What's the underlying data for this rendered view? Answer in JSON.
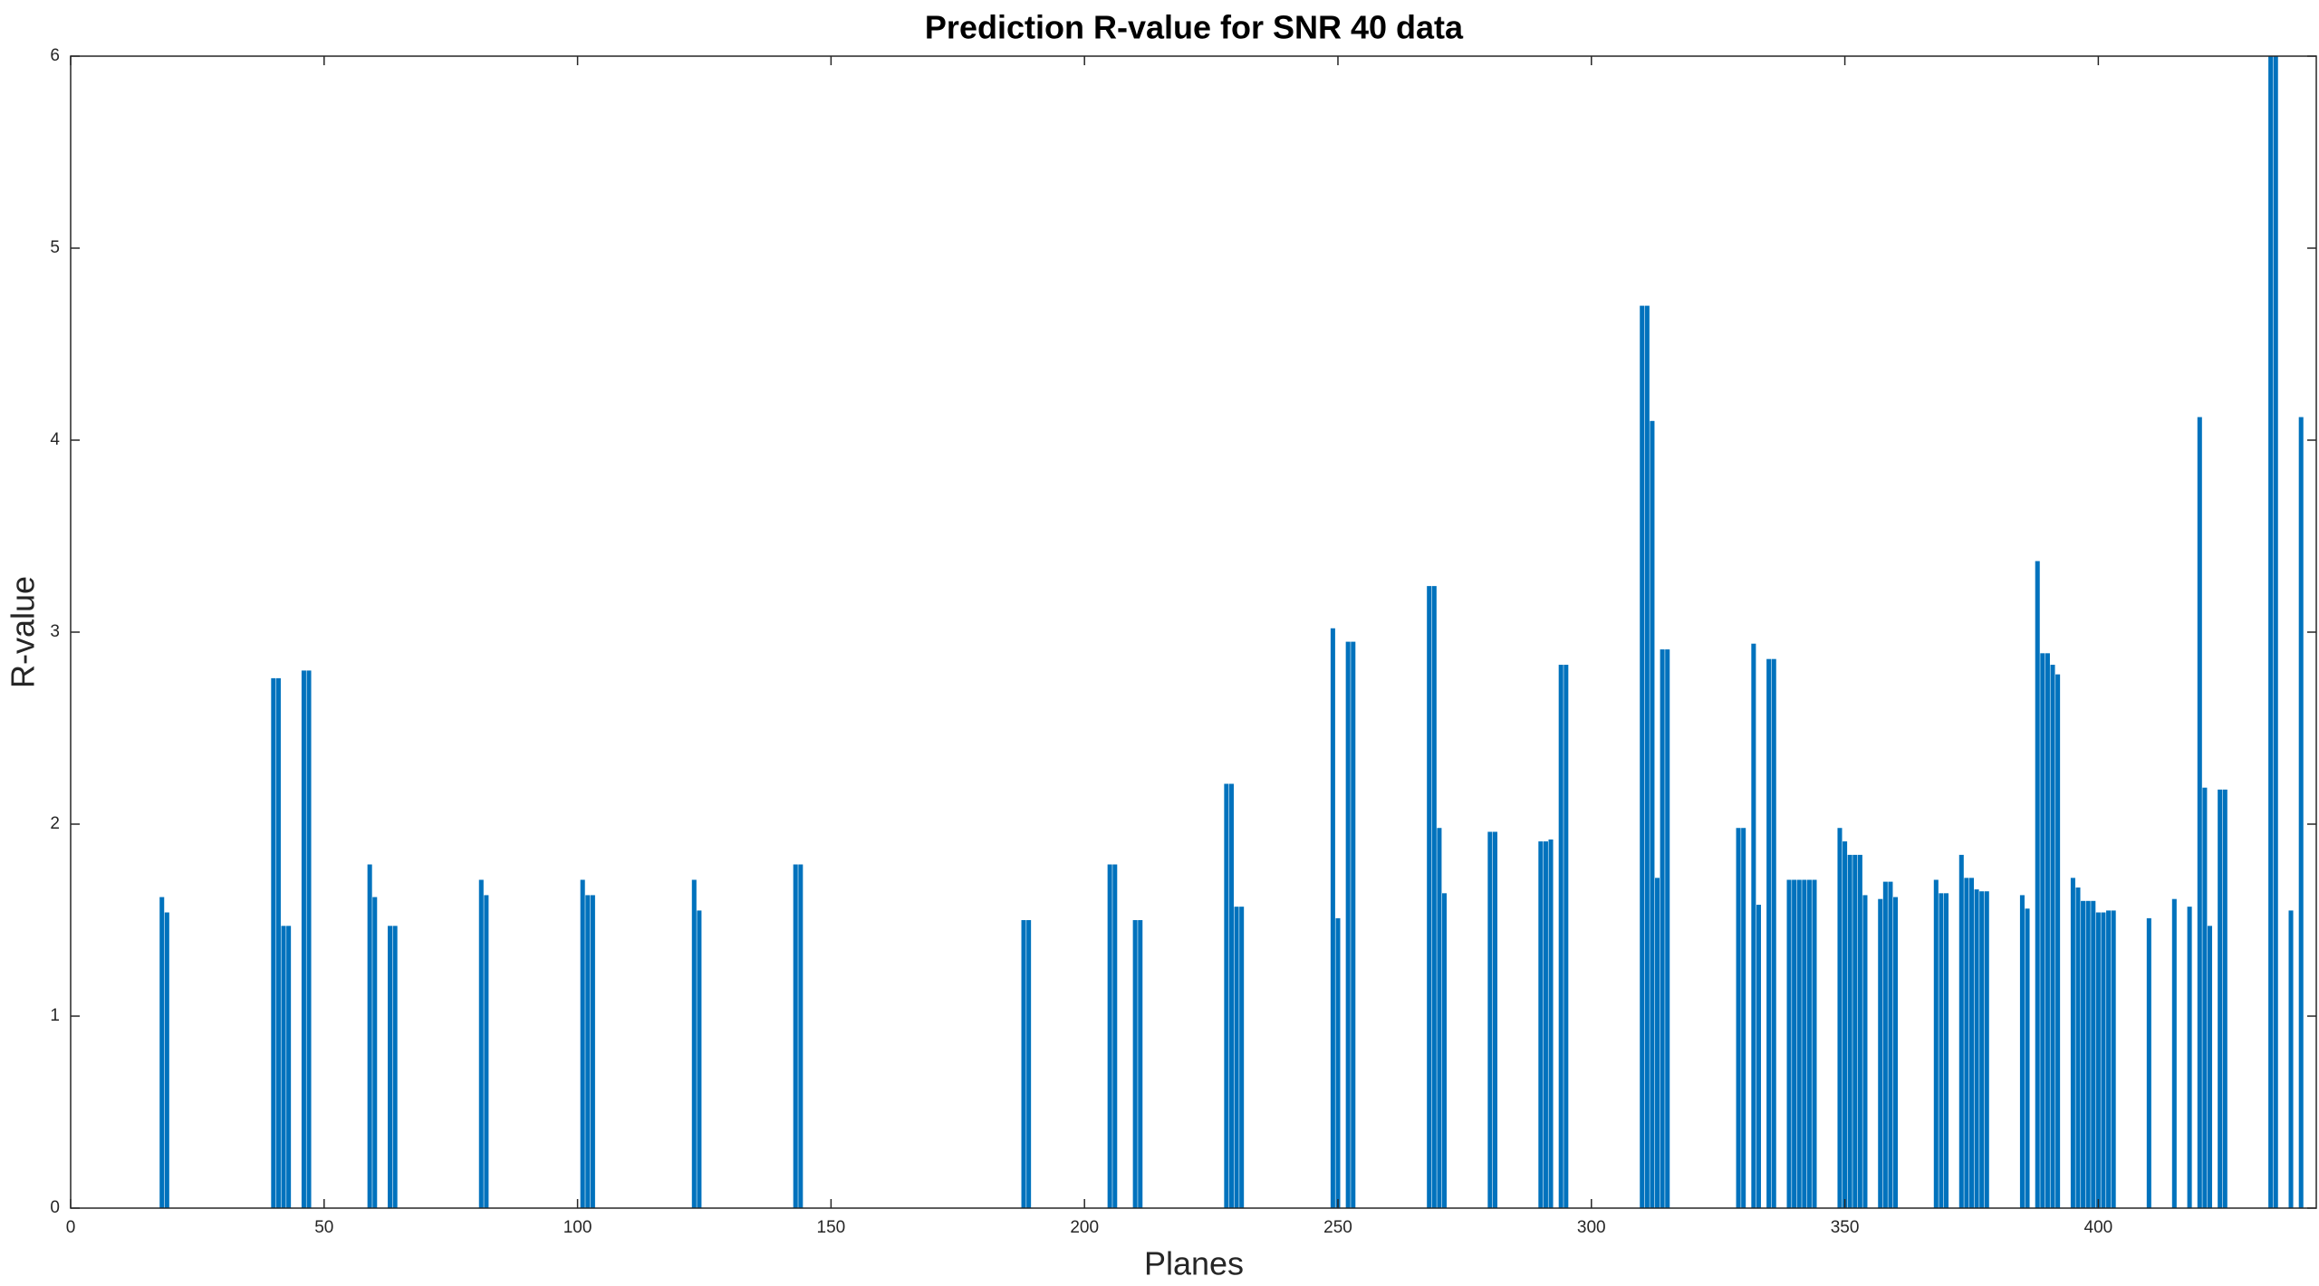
{
  "chart_data": {
    "type": "bar",
    "title": "Prediction R-value for SNR 40 data",
    "xlabel": "Planes",
    "ylabel": "R-value",
    "color": "#0072bd",
    "xlim": [
      0,
      443
    ],
    "ylim": [
      0,
      6
    ],
    "xticks": [
      0,
      50,
      100,
      150,
      200,
      250,
      300,
      350,
      400
    ],
    "yticks": [
      0,
      1,
      2,
      3,
      4,
      5,
      6
    ],
    "grid": false,
    "x": [
      18,
      19,
      40,
      41,
      42,
      43,
      46,
      47,
      59,
      60,
      63,
      64,
      81,
      82,
      101,
      102,
      103,
      123,
      124,
      143,
      144,
      188,
      189,
      205,
      206,
      210,
      211,
      228,
      229,
      230,
      231,
      249,
      250,
      252,
      253,
      268,
      269,
      270,
      271,
      280,
      281,
      290,
      291,
      292,
      294,
      295,
      310,
      311,
      312,
      313,
      314,
      315,
      329,
      330,
      332,
      333,
      335,
      336,
      339,
      340,
      341,
      342,
      343,
      344,
      349,
      350,
      351,
      352,
      353,
      354,
      357,
      358,
      359,
      360,
      368,
      369,
      370,
      373,
      374,
      375,
      376,
      377,
      378,
      385,
      386,
      388,
      389,
      390,
      391,
      392,
      395,
      396,
      397,
      398,
      399,
      400,
      401,
      402,
      403,
      410,
      415,
      418,
      420,
      421,
      422,
      424,
      425,
      434,
      435,
      438,
      440
    ],
    "values": [
      1.62,
      1.54,
      2.76,
      2.76,
      1.47,
      1.47,
      2.8,
      2.8,
      1.79,
      1.62,
      1.47,
      1.47,
      1.71,
      1.63,
      1.71,
      1.63,
      1.63,
      1.71,
      1.55,
      1.79,
      1.79,
      1.5,
      1.5,
      1.79,
      1.79,
      1.5,
      1.5,
      2.21,
      2.21,
      1.57,
      1.57,
      3.02,
      1.51,
      2.95,
      2.95,
      3.24,
      3.24,
      1.98,
      1.64,
      1.96,
      1.96,
      1.91,
      1.91,
      1.92,
      2.83,
      2.83,
      4.7,
      4.7,
      4.1,
      1.72,
      2.91,
      2.91,
      1.98,
      1.98,
      2.94,
      1.58,
      2.86,
      2.86,
      1.71,
      1.71,
      1.71,
      1.71,
      1.71,
      1.71,
      1.98,
      1.91,
      1.84,
      1.84,
      1.84,
      1.63,
      1.61,
      1.7,
      1.7,
      1.62,
      1.71,
      1.64,
      1.64,
      1.84,
      1.72,
      1.72,
      1.66,
      1.65,
      1.65,
      1.63,
      1.56,
      3.37,
      2.89,
      2.89,
      2.83,
      2.78,
      1.72,
      1.67,
      1.6,
      1.6,
      1.6,
      1.54,
      1.54,
      1.55,
      1.55,
      1.51,
      1.61,
      1.57,
      4.12,
      2.19,
      1.47,
      2.18,
      2.18,
      6,
      6,
      1.55,
      4.12
    ]
  }
}
